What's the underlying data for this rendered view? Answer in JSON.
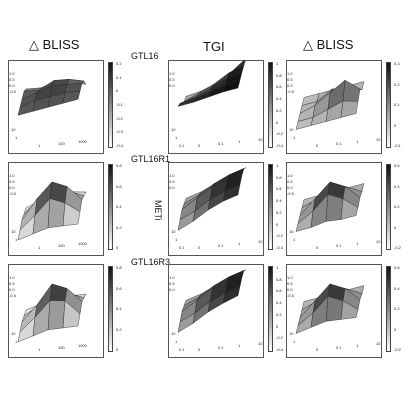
{
  "headers": {
    "left_delta": "△ BLISS",
    "middle_tgi": "TGI",
    "right_delta": "△ BLISS"
  },
  "row_labels": [
    "GTL16",
    "GTL16R1",
    "GTL16R3"
  ],
  "side_label": "METi",
  "colors": {
    "dark": "#111111",
    "light": "#ffffff",
    "edge": "#222222"
  },
  "chart_data": [
    {
      "type": "heatmap",
      "row": "GTL16",
      "column": "△ BLISS (left)",
      "x_ticks": [
        "1",
        "100",
        "1000"
      ],
      "y_ticks": [
        "10",
        "1"
      ],
      "z_ticks": [
        "1.0",
        "0.5",
        "0.0",
        "-0.5"
      ],
      "colorbar_ticks": [
        "0.2",
        "0.1",
        "0",
        "-0.1",
        "-0.2",
        "-0.3",
        "-0.4"
      ],
      "colorbar_range": [
        -0.4,
        0.2
      ],
      "values": [
        [
          0.0,
          0.0,
          0.0,
          0.0,
          0.0
        ],
        [
          0.0,
          0.05,
          0.05,
          0.05,
          0.0
        ],
        [
          0.0,
          0.05,
          0.1,
          0.05,
          0.0
        ],
        [
          0.0,
          -0.05,
          0.05,
          0.0,
          -0.1
        ],
        [
          -0.1,
          -0.15,
          -0.1,
          -0.2,
          -0.3
        ]
      ]
    },
    {
      "type": "heatmap",
      "row": "GTL16",
      "column": "TGI",
      "x_ticks": [
        "0",
        "0.1",
        "1",
        "10"
      ],
      "y_ticks": [
        "10",
        "1",
        "0.1"
      ],
      "z_ticks": [
        "1.0",
        "0.5",
        "0.0"
      ],
      "colorbar_ticks": [
        "1",
        "0.8",
        "0.6",
        "0.4",
        "0.2",
        "0",
        "-0.2",
        "-0.4"
      ],
      "colorbar_range": [
        -0.4,
        1.0
      ],
      "values": [
        [
          0.9,
          0.9,
          0.95,
          1.0,
          1.0
        ],
        [
          0.7,
          0.75,
          0.85,
          0.95,
          1.0
        ],
        [
          0.4,
          0.5,
          0.7,
          0.9,
          1.0
        ],
        [
          0.1,
          0.3,
          0.5,
          0.8,
          0.95
        ],
        [
          0.0,
          0.05,
          0.2,
          0.5,
          0.9
        ]
      ]
    },
    {
      "type": "heatmap",
      "row": "GTL16",
      "column": "△ BLISS (right)",
      "x_ticks": [
        "0",
        "0.1",
        "1",
        "10"
      ],
      "y_ticks": [
        "10",
        "1"
      ],
      "z_ticks": [
        "1.0",
        "0.5",
        "0.0",
        "-0.5"
      ],
      "colorbar_ticks": [
        "0.3",
        "0.2",
        "0.1",
        "0",
        "-0.1"
      ],
      "colorbar_range": [
        -0.1,
        0.3
      ],
      "values": [
        [
          0.0,
          0.0,
          0.0,
          0.0,
          0.0
        ],
        [
          0.0,
          0.0,
          0.05,
          0.1,
          0.05
        ],
        [
          0.0,
          0.05,
          0.15,
          0.25,
          0.1
        ],
        [
          0.0,
          0.0,
          0.1,
          0.05,
          0.0
        ],
        [
          0.0,
          0.0,
          0.0,
          0.0,
          0.0
        ]
      ]
    },
    {
      "type": "heatmap",
      "row": "GTL16R1",
      "column": "△ BLISS (left)",
      "x_ticks": [
        "1",
        "100",
        "1000"
      ],
      "y_ticks": [
        "10",
        "1"
      ],
      "z_ticks": [
        "1.0",
        "0.5",
        "0.0",
        "-0.5"
      ],
      "colorbar_ticks": [
        "0.8",
        "0.6",
        "0.4",
        "0.2",
        "0"
      ],
      "colorbar_range": [
        0.0,
        0.8
      ],
      "values": [
        [
          0.0,
          0.05,
          0.1,
          0.05,
          0.0
        ],
        [
          0.05,
          0.3,
          0.6,
          0.4,
          0.1
        ],
        [
          0.1,
          0.5,
          0.8,
          0.6,
          0.2
        ],
        [
          0.05,
          0.3,
          0.5,
          0.3,
          0.1
        ],
        [
          0.0,
          0.1,
          0.2,
          0.1,
          0.0
        ]
      ]
    },
    {
      "type": "heatmap",
      "row": "GTL16R1",
      "column": "TGI",
      "x_ticks": [
        "0",
        "0.1",
        "1",
        "10"
      ],
      "y_ticks": [
        "10",
        "1",
        "0.1"
      ],
      "z_ticks": [
        "1.0",
        "0.5",
        "0.0"
      ],
      "colorbar_ticks": [
        "1",
        "0.8",
        "0.6",
        "0.4",
        "0.2",
        "0",
        "-0.2",
        "-0.4"
      ],
      "colorbar_range": [
        -0.4,
        1.0
      ],
      "values": [
        [
          0.0,
          0.2,
          0.5,
          0.7,
          0.8
        ],
        [
          0.1,
          0.3,
          0.6,
          0.8,
          0.9
        ],
        [
          0.2,
          0.5,
          0.8,
          0.9,
          0.95
        ],
        [
          0.1,
          0.3,
          0.6,
          0.8,
          0.9
        ],
        [
          0.0,
          0.1,
          0.3,
          0.5,
          0.6
        ]
      ]
    },
    {
      "type": "heatmap",
      "row": "GTL16R1",
      "column": "△ BLISS (right)",
      "x_ticks": [
        "0",
        "0.1",
        "1",
        "10"
      ],
      "y_ticks": [
        "10",
        "1"
      ],
      "z_ticks": [
        "1.0",
        "0.5",
        "0.0",
        "-0.5"
      ],
      "colorbar_ticks": [
        "0.6",
        "0.4",
        "0.2",
        "0",
        "-0.2"
      ],
      "colorbar_range": [
        -0.2,
        0.6
      ],
      "values": [
        [
          0.0,
          0.0,
          0.05,
          0.0,
          0.0
        ],
        [
          0.0,
          0.2,
          0.5,
          0.3,
          0.0
        ],
        [
          0.0,
          0.3,
          0.6,
          0.4,
          0.05
        ],
        [
          0.0,
          0.1,
          0.3,
          0.2,
          0.0
        ],
        [
          0.0,
          0.0,
          0.05,
          0.0,
          0.0
        ]
      ]
    },
    {
      "type": "heatmap",
      "row": "GTL16R3",
      "column": "△ BLISS (left)",
      "x_ticks": [
        "1",
        "100",
        "1000"
      ],
      "y_ticks": [
        "10",
        "1"
      ],
      "z_ticks": [
        "1.0",
        "0.5",
        "0.0",
        "-0.5"
      ],
      "colorbar_ticks": [
        "0.8",
        "0.6",
        "0.4",
        "0.2",
        "0"
      ],
      "colorbar_range": [
        0.0,
        0.8
      ],
      "values": [
        [
          0.0,
          0.05,
          0.1,
          0.05,
          0.0
        ],
        [
          0.05,
          0.3,
          0.6,
          0.5,
          0.1
        ],
        [
          0.1,
          0.4,
          0.8,
          0.6,
          0.2
        ],
        [
          0.05,
          0.2,
          0.4,
          0.3,
          0.1
        ],
        [
          0.0,
          0.05,
          0.1,
          0.05,
          0.0
        ]
      ]
    },
    {
      "type": "heatmap",
      "row": "GTL16R3",
      "column": "TGI",
      "x_ticks": [
        "0",
        "0.1",
        "1",
        "10"
      ],
      "y_ticks": [
        "10",
        "1",
        "0.1"
      ],
      "z_ticks": [
        "1.0",
        "0.5",
        "0.0"
      ],
      "colorbar_ticks": [
        "1",
        "0.8",
        "0.6",
        "0.4",
        "0.2",
        "0",
        "-0.2",
        "-0.4"
      ],
      "colorbar_range": [
        -0.4,
        1.0
      ],
      "values": [
        [
          0.0,
          0.2,
          0.5,
          0.7,
          0.85
        ],
        [
          0.1,
          0.3,
          0.6,
          0.8,
          0.9
        ],
        [
          0.2,
          0.5,
          0.8,
          0.9,
          0.95
        ],
        [
          0.1,
          0.3,
          0.6,
          0.8,
          0.9
        ],
        [
          0.0,
          0.1,
          0.3,
          0.5,
          0.6
        ]
      ]
    },
    {
      "type": "heatmap",
      "row": "GTL16R3",
      "column": "△ BLISS (right)",
      "x_ticks": [
        "0",
        "0.1",
        "1",
        "10"
      ],
      "y_ticks": [
        "10",
        "1"
      ],
      "z_ticks": [
        "1.0",
        "0.5",
        "0.0",
        "-0.5"
      ],
      "colorbar_ticks": [
        "0.6",
        "0.4",
        "0.2",
        "0",
        "-0.2"
      ],
      "colorbar_range": [
        -0.2,
        0.6
      ],
      "values": [
        [
          0.0,
          0.05,
          0.1,
          0.05,
          0.0
        ],
        [
          0.0,
          0.2,
          0.5,
          0.3,
          0.0
        ],
        [
          0.0,
          0.3,
          0.6,
          0.4,
          0.05
        ],
        [
          0.0,
          0.1,
          0.3,
          0.2,
          0.0
        ],
        [
          0.0,
          0.0,
          0.05,
          0.0,
          0.0
        ]
      ]
    }
  ]
}
